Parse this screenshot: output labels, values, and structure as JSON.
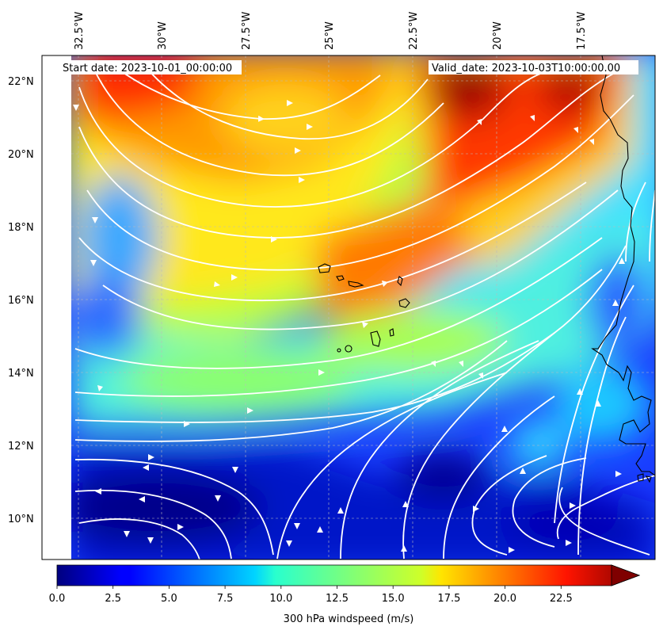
{
  "map": {
    "start_label": "Start date: 2023-10-01_00:00:00",
    "valid_label": "Valid_date: 2023-10-03T10:00:00.00",
    "lon_ticks": [
      "32.5°W",
      "30°W",
      "27.5°W",
      "25°W",
      "22.5°W",
      "20°W",
      "17.5°W"
    ],
    "lat_ticks": [
      "22°N",
      "20°N",
      "18°N",
      "16°N",
      "14°N",
      "12°N",
      "10°N"
    ],
    "field": "300 hPa windspeed",
    "overlay": "white streamlines",
    "coastline_color": "#000000"
  },
  "colorbar": {
    "label": "300 hPa windspeed (m/s)",
    "ticks": [
      "0.0",
      "2.5",
      "5.0",
      "7.5",
      "10.0",
      "12.5",
      "15.0",
      "17.5",
      "20.0",
      "22.5"
    ],
    "min": 0,
    "max": 25,
    "colormap": "jet",
    "extend": "max"
  }
}
